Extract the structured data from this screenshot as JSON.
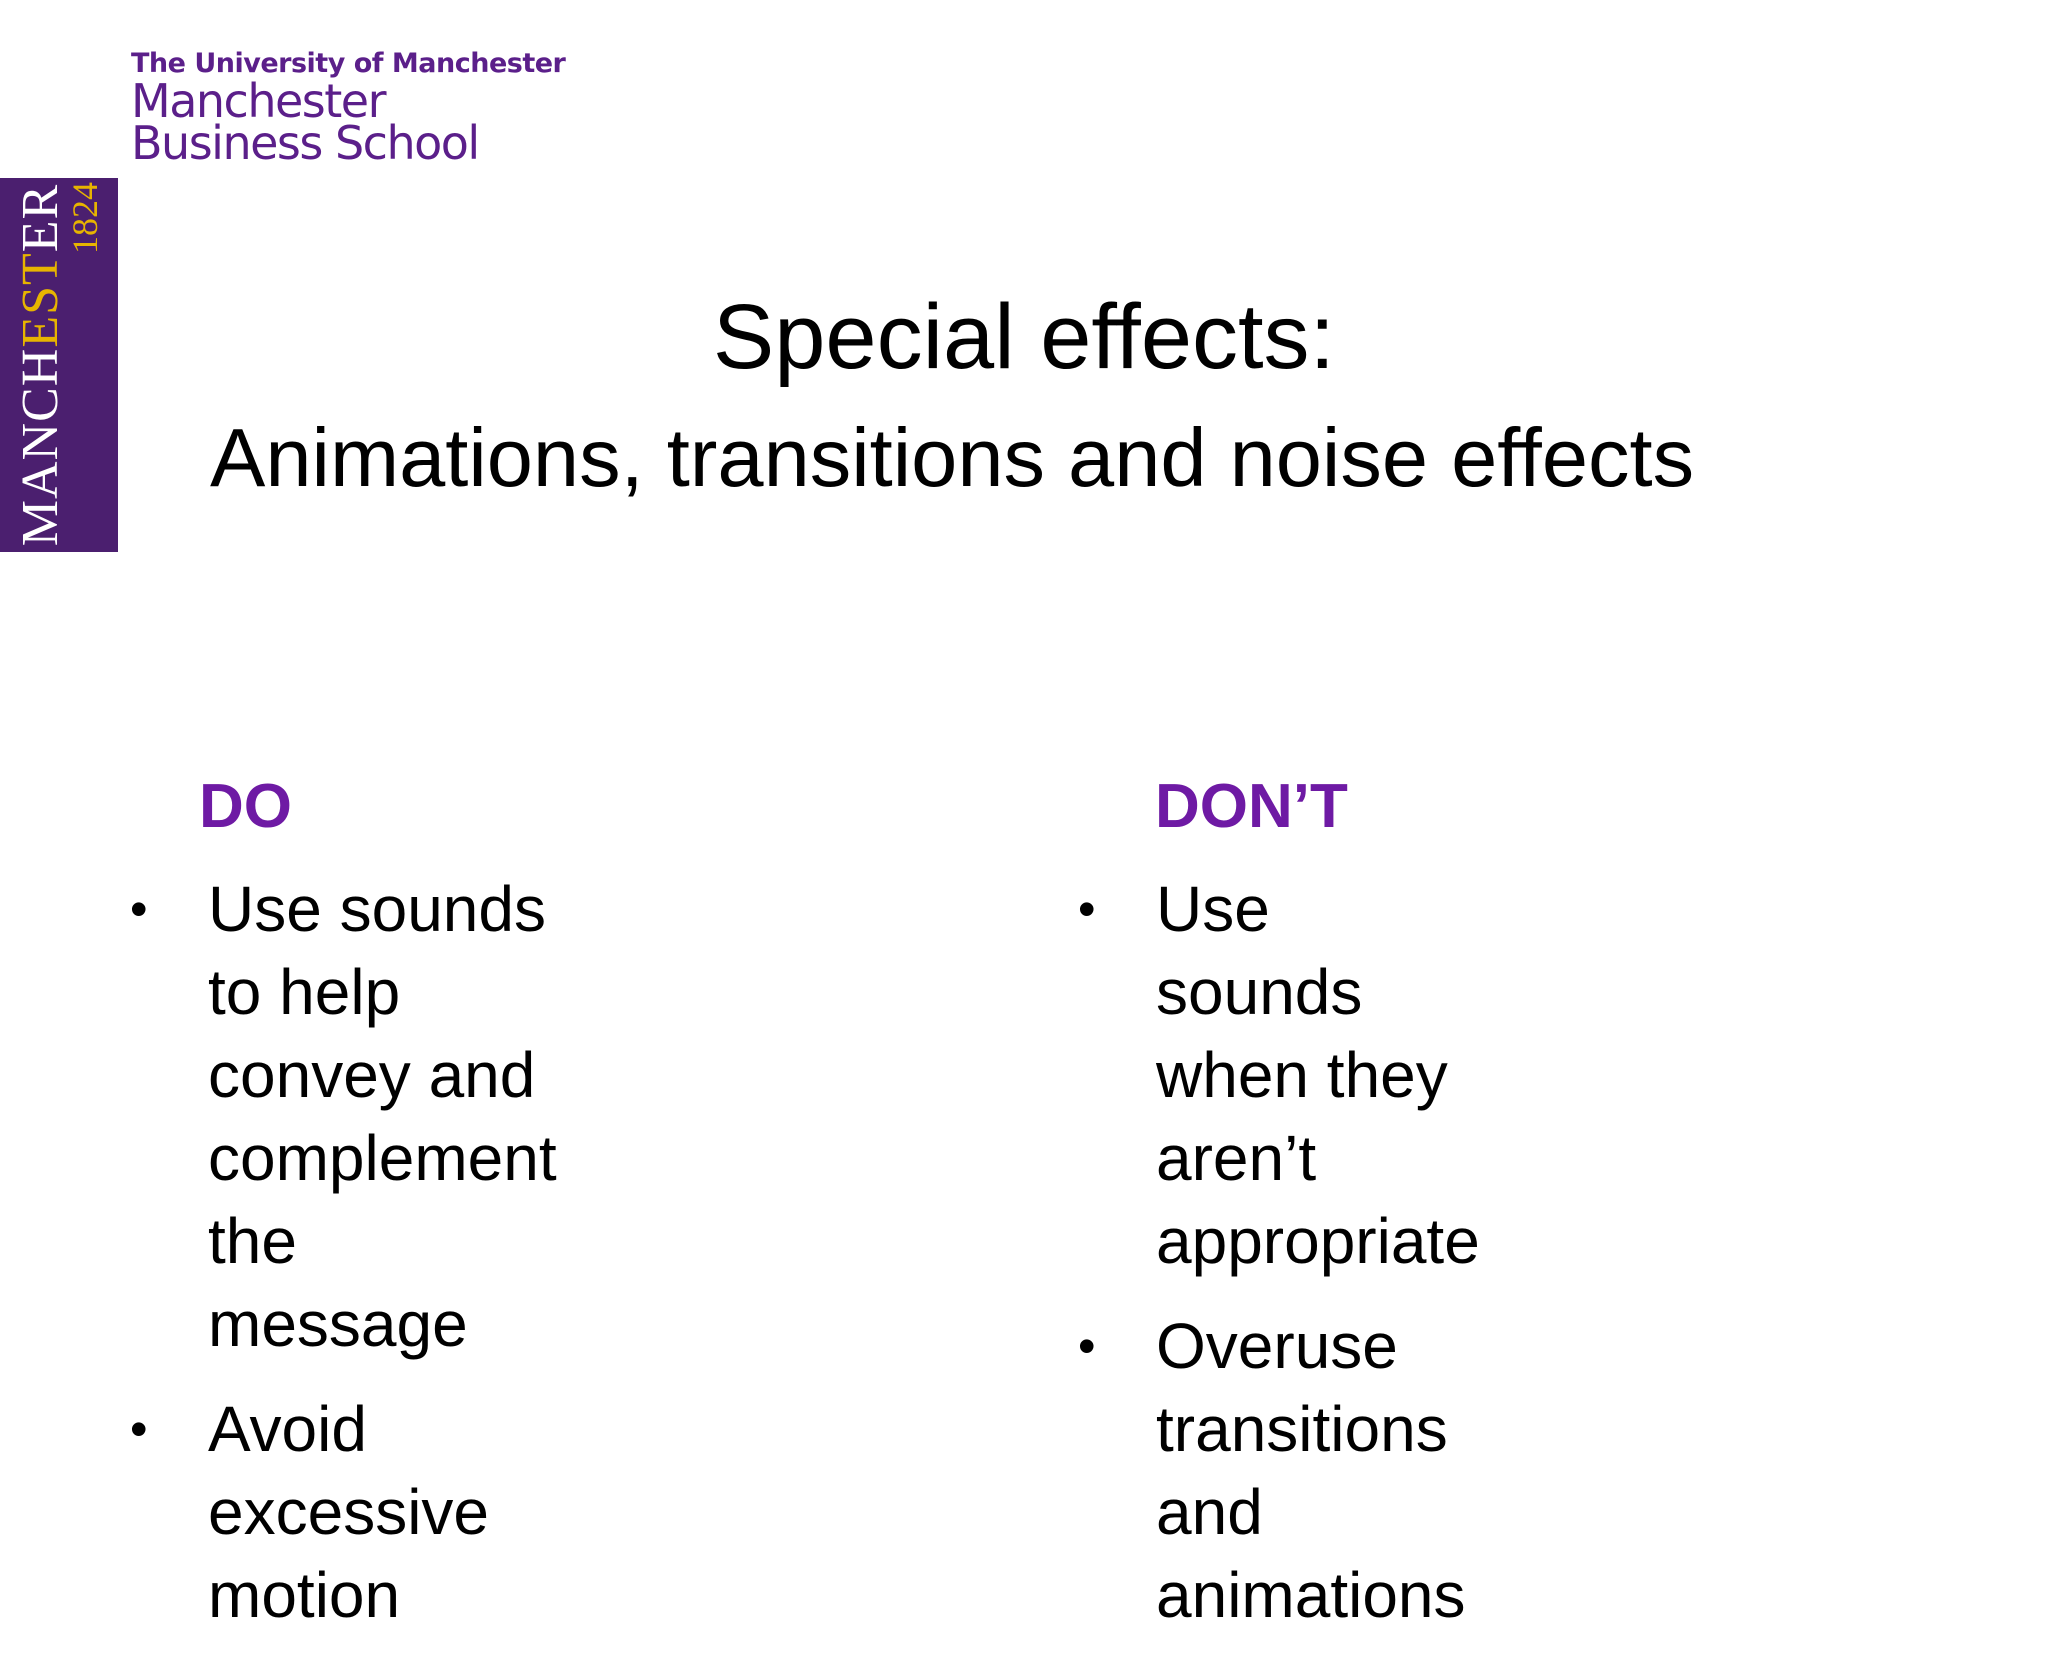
{
  "logo": {
    "university": "The University of Manchester",
    "school_line1": "Manchester",
    "school_line2": "Business School",
    "crest_name_part1": "MANCH",
    "crest_name_part2": "EST",
    "crest_name_part3": "ER",
    "crest_year": "1824",
    "colors": {
      "purple": "#4b1f6f",
      "gold": "#e7b400",
      "text": "#5b1f8a"
    }
  },
  "slide": {
    "title": "Special effects:",
    "subtitle": "Animations, transitions and noise effects"
  },
  "do_column": {
    "heading": "DO",
    "items": [
      {
        "lines": [
          "Use sounds to help",
          "convey and complement",
          "the message"
        ]
      },
      {
        "lines": [
          "Avoid excessive motion"
        ]
      }
    ]
  },
  "dont_column": {
    "heading": "DON’T",
    "items": [
      {
        "lines": [
          "Use sounds when they",
          "aren’t appropriate"
        ]
      },
      {
        "lines": [
          "Overuse transitions and",
          "animations"
        ]
      }
    ]
  },
  "bullet_symbol": "•",
  "heading_color": "#6e1aa4"
}
